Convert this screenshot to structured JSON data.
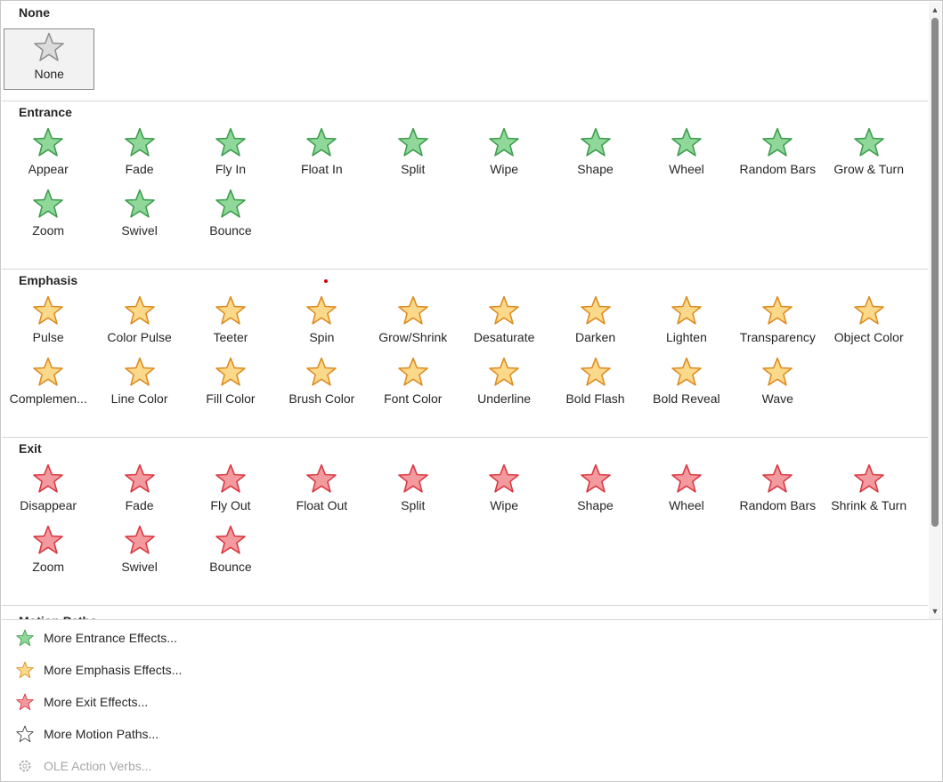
{
  "colors": {
    "none": [
      "#dcdcdc",
      "#8f8f8f"
    ],
    "entrance": [
      "#8fd89a",
      "#3c9c4c"
    ],
    "emphasis": [
      "#fbd98a",
      "#de8a1f"
    ],
    "exit": [
      "#f39a9e",
      "#d83640"
    ]
  },
  "sections": [
    {
      "id": "none",
      "title": "None",
      "items": [
        {
          "label": "None",
          "icon": "star-gray-icon",
          "tint": "none",
          "selected": true
        }
      ]
    },
    {
      "id": "entrance",
      "title": "Entrance",
      "items": [
        {
          "label": "Appear",
          "icon": "appear-entrance-icon",
          "tint": "entrance"
        },
        {
          "label": "Fade",
          "icon": "fade-entrance-icon",
          "tint": "entrance"
        },
        {
          "label": "Fly In",
          "icon": "fly-in-icon",
          "tint": "entrance"
        },
        {
          "label": "Float In",
          "icon": "float-in-icon",
          "tint": "entrance"
        },
        {
          "label": "Split",
          "icon": "split-entrance-icon",
          "tint": "entrance"
        },
        {
          "label": "Wipe",
          "icon": "wipe-entrance-icon",
          "tint": "entrance"
        },
        {
          "label": "Shape",
          "icon": "shape-entrance-icon",
          "tint": "entrance"
        },
        {
          "label": "Wheel",
          "icon": "wheel-entrance-icon",
          "tint": "entrance"
        },
        {
          "label": "Random Bars",
          "icon": "random-bars-entrance-icon",
          "tint": "entrance"
        },
        {
          "label": "Grow & Turn",
          "icon": "grow-turn-icon",
          "tint": "entrance"
        },
        {
          "label": "Zoom",
          "icon": "zoom-entrance-icon",
          "tint": "entrance"
        },
        {
          "label": "Swivel",
          "icon": "swivel-entrance-icon",
          "tint": "entrance"
        },
        {
          "label": "Bounce",
          "icon": "bounce-entrance-icon",
          "tint": "entrance"
        }
      ]
    },
    {
      "id": "emphasis",
      "title": "Emphasis",
      "items": [
        {
          "label": "Pulse",
          "icon": "pulse-icon",
          "tint": "emphasis"
        },
        {
          "label": "Color Pulse",
          "icon": "color-pulse-icon",
          "tint": "emphasis"
        },
        {
          "label": "Teeter",
          "icon": "teeter-icon",
          "tint": "emphasis"
        },
        {
          "label": "Spin",
          "icon": "spin-icon",
          "tint": "emphasis"
        },
        {
          "label": "Grow/Shrink",
          "icon": "grow-shrink-icon",
          "tint": "emphasis"
        },
        {
          "label": "Desaturate",
          "icon": "desaturate-icon",
          "tint": "emphasis"
        },
        {
          "label": "Darken",
          "icon": "darken-icon",
          "tint": "emphasis"
        },
        {
          "label": "Lighten",
          "icon": "lighten-icon",
          "tint": "emphasis"
        },
        {
          "label": "Transparency",
          "icon": "transparency-icon",
          "tint": "emphasis"
        },
        {
          "label": "Object Color",
          "icon": "object-color-icon",
          "tint": "emphasis"
        },
        {
          "label": "Complemen...",
          "icon": "complementary-color-icon",
          "tint": "emphasis"
        },
        {
          "label": "Line Color",
          "icon": "line-color-icon",
          "tint": "emphasis"
        },
        {
          "label": "Fill Color",
          "icon": "fill-color-icon",
          "tint": "emphasis"
        },
        {
          "label": "Brush Color",
          "icon": "brush-color-icon",
          "tint": "emphasis"
        },
        {
          "label": "Font Color",
          "icon": "font-color-icon",
          "tint": "emphasis"
        },
        {
          "label": "Underline",
          "icon": "underline-icon",
          "tint": "emphasis"
        },
        {
          "label": "Bold Flash",
          "icon": "bold-flash-icon",
          "tint": "emphasis"
        },
        {
          "label": "Bold Reveal",
          "icon": "bold-reveal-icon",
          "tint": "emphasis"
        },
        {
          "label": "Wave",
          "icon": "wave-icon",
          "tint": "emphasis"
        }
      ]
    },
    {
      "id": "exit",
      "title": "Exit",
      "items": [
        {
          "label": "Disappear",
          "icon": "disappear-icon",
          "tint": "exit"
        },
        {
          "label": "Fade",
          "icon": "fade-exit-icon",
          "tint": "exit"
        },
        {
          "label": "Fly Out",
          "icon": "fly-out-icon",
          "tint": "exit"
        },
        {
          "label": "Float Out",
          "icon": "float-out-icon",
          "tint": "exit"
        },
        {
          "label": "Split",
          "icon": "split-exit-icon",
          "tint": "exit"
        },
        {
          "label": "Wipe",
          "icon": "wipe-exit-icon",
          "tint": "exit"
        },
        {
          "label": "Shape",
          "icon": "shape-exit-icon",
          "tint": "exit"
        },
        {
          "label": "Wheel",
          "icon": "wheel-exit-icon",
          "tint": "exit"
        },
        {
          "label": "Random Bars",
          "icon": "random-bars-exit-icon",
          "tint": "exit"
        },
        {
          "label": "Shrink & Turn",
          "icon": "shrink-turn-icon",
          "tint": "exit"
        },
        {
          "label": "Zoom",
          "icon": "zoom-exit-icon",
          "tint": "exit"
        },
        {
          "label": "Swivel",
          "icon": "swivel-exit-icon",
          "tint": "exit"
        },
        {
          "label": "Bounce",
          "icon": "bounce-exit-icon",
          "tint": "exit"
        }
      ]
    },
    {
      "id": "motion",
      "title": "Motion Paths",
      "items": []
    }
  ],
  "menu": [
    {
      "label": "More Entrance Effects...",
      "icon": "entrance-star-icon",
      "tint": "entrance",
      "enabled": true
    },
    {
      "label": "More Emphasis Effects...",
      "icon": "emphasis-star-icon",
      "tint": "emphasis",
      "enabled": true
    },
    {
      "label": "More Exit Effects...",
      "icon": "exit-star-icon",
      "tint": "exit",
      "enabled": true
    },
    {
      "label": "More Motion Paths...",
      "icon": "motion-path-star-icon",
      "tint": "motion",
      "enabled": true
    },
    {
      "label": "OLE Action Verbs...",
      "icon": "gear-icon",
      "tint": "disabled",
      "enabled": false
    }
  ]
}
